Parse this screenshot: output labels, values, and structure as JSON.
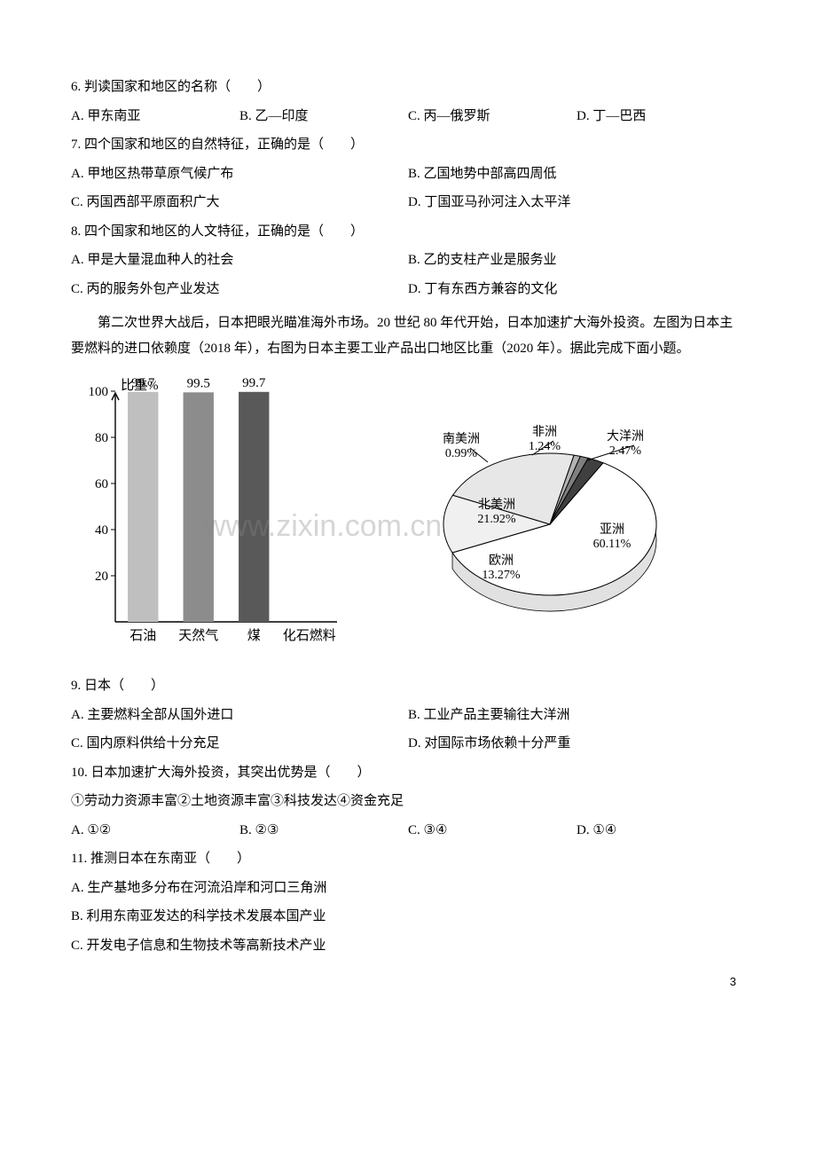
{
  "page_number": "3",
  "watermark": "www.zixin.com.cn",
  "q6": {
    "stem": "6. 判读国家和地区的名称（　　）",
    "opts": [
      "A. 甲东南亚",
      "B. 乙—印度",
      "C. 丙—俄罗斯",
      "D. 丁—巴西"
    ]
  },
  "q7": {
    "stem": "7. 四个国家和地区的自然特征，正确的是（　　）",
    "opts": [
      "A. 甲地区热带草原气候广布",
      "B. 乙国地势中部高四周低",
      "C. 丙国西部平原面积广大",
      "D. 丁国亚马孙河注入太平洋"
    ]
  },
  "q8": {
    "stem": "8. 四个国家和地区的人文特征，正确的是（　　）",
    "opts": [
      "A. 甲是大量混血种人的社会",
      "B. 乙的支柱产业是服务业",
      "C. 丙的服务外包产业发达",
      "D. 丁有东西方兼容的文化"
    ]
  },
  "passage1": "第二次世界大战后，日本把眼光瞄准海外市场。20 世纪 80 年代开始，日本加速扩大海外投资。左图为日本主要燃料的进口依赖度（2018 年），右图为日本主要工业产品出口地区比重（2020 年）。据此完成下面小题。",
  "bar_chart": {
    "type": "bar",
    "title": "比重%",
    "categories": [
      "石油",
      "天然气",
      "煤",
      "化石燃料"
    ],
    "value_labels": [
      "99.7",
      "99.5",
      "99.7",
      ""
    ],
    "values": [
      99.7,
      99.5,
      99.7,
      null
    ],
    "bar_colors": [
      "#bfbfbf",
      "#8c8c8c",
      "#595959",
      "#ffffff"
    ],
    "ylim": [
      0,
      100
    ],
    "ytick_step": 20,
    "tick_labels": [
      "20",
      "40",
      "60",
      "80",
      "100"
    ],
    "axis_color": "#000000",
    "label_fontsize": 15
  },
  "pie_chart": {
    "type": "pie",
    "slices": [
      {
        "label": "亚洲",
        "pct": 60.11,
        "text": "亚洲\n60.11%",
        "fill": "#ffffff"
      },
      {
        "label": "欧洲",
        "pct": 13.27,
        "text": "欧洲\n13.27%",
        "fill": "#f0f0f0"
      },
      {
        "label": "北美洲",
        "pct": 21.92,
        "text": "北美洲\n21.92%",
        "fill": "#e7e7e7"
      },
      {
        "label": "南美洲",
        "pct": 0.99,
        "text": "南美洲\n0.99%",
        "fill": "#b3b3b3"
      },
      {
        "label": "非洲",
        "pct": 1.24,
        "text": "非洲\n1.24%",
        "fill": "#808080"
      },
      {
        "label": "大洋洲",
        "pct": 2.47,
        "text": "大洋洲\n2.47%",
        "fill": "#404040"
      }
    ],
    "stroke": "#000000",
    "label_fontsize": 14
  },
  "q9": {
    "stem": "9. 日本（　　）",
    "opts": [
      "A. 主要燃料全部从国外进口",
      "B. 工业产品主要输往大洋洲",
      "C. 国内原料供给十分充足",
      "D. 对国际市场依赖十分严重"
    ]
  },
  "q10": {
    "stem": "10. 日本加速扩大海外投资，其突出优势是（　　）",
    "sub": "①劳动力资源丰富②土地资源丰富③科技发达④资金充足",
    "opts": [
      "A. ①②",
      "B. ②③",
      "C. ③④",
      "D. ①④"
    ]
  },
  "q11": {
    "stem": "11. 推测日本在东南亚（　　）",
    "opts": [
      "A. 生产基地多分布在河流沿岸和河口三角洲",
      "B. 利用东南亚发达的科学技术发展本国产业",
      "C. 开发电子信息和生物技术等高新技术产业"
    ]
  }
}
